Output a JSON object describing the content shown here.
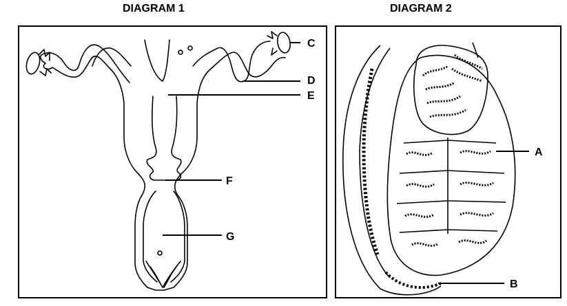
{
  "diagram1": {
    "title": "DIAGRAM 1",
    "labels": {
      "c": "C",
      "d": "D",
      "e": "E",
      "f": "F",
      "g": "G"
    }
  },
  "diagram2": {
    "title": "DIAGRAM 2",
    "labels": {
      "a": "A",
      "b": "B"
    }
  },
  "colors": {
    "line": "#000000",
    "background": "#ffffff"
  }
}
